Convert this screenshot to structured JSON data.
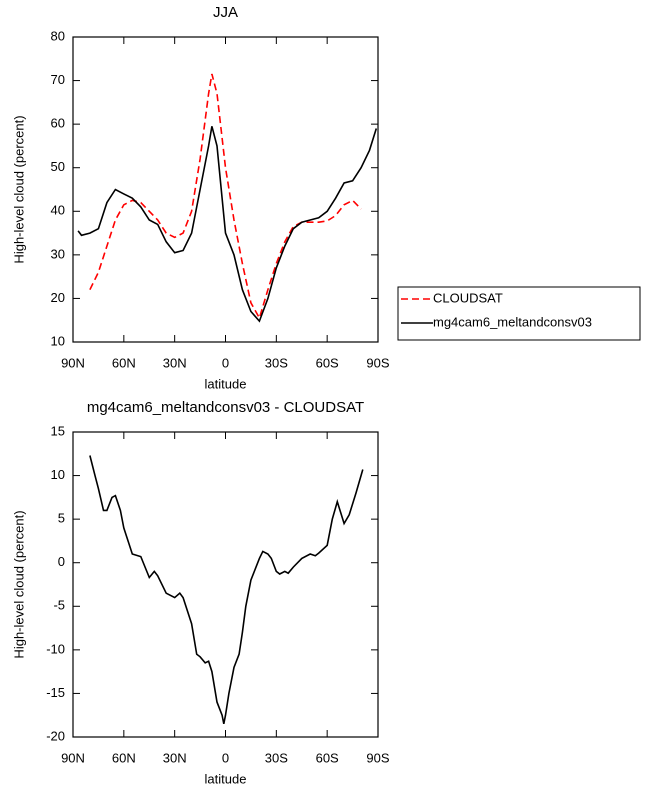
{
  "chart_data": [
    {
      "type": "line",
      "title": "JJA",
      "xlabel": "latitude",
      "ylabel": "High-level cloud (percent)",
      "x": [
        87,
        85,
        80,
        75,
        70,
        65,
        60,
        55,
        50,
        45,
        40,
        35,
        30,
        25,
        20,
        15,
        10,
        8,
        5,
        0,
        -5,
        -10,
        -15,
        -20,
        -25,
        -30,
        -35,
        -40,
        -45,
        -50,
        -55,
        -60,
        -65,
        -70,
        -75,
        -80,
        -85,
        -89
      ],
      "series": [
        {
          "name": "CLOUDSAT",
          "color": "#ff0000",
          "dashed": true,
          "values": [
            null,
            null,
            22,
            26,
            32,
            38,
            41.5,
            42.5,
            42,
            40,
            38,
            35,
            34,
            35,
            40,
            52,
            67,
            71.5,
            67,
            50,
            38,
            28,
            19,
            15.5,
            22,
            28,
            33,
            36.5,
            37.5,
            37.5,
            37.5,
            37.8,
            39,
            41.5,
            42.5,
            40.5,
            null,
            null
          ]
        },
        {
          "name": "mg4cam6_meltandconsv03",
          "color": "#000000",
          "dashed": false,
          "values": [
            35.5,
            34.5,
            35,
            36,
            42,
            45,
            44,
            43,
            41,
            38,
            37,
            33,
            30.5,
            31,
            35,
            45,
            55,
            59.5,
            55,
            35,
            30,
            22,
            17,
            14.8,
            20,
            27,
            32,
            36,
            37.5,
            38,
            38.5,
            40,
            43,
            46.5,
            47,
            50,
            54,
            59
          ]
        }
      ],
      "xlim": [
        90,
        -90
      ],
      "ylim": [
        10,
        80
      ],
      "xticks": [
        {
          "value": 90,
          "label": "90N"
        },
        {
          "value": 60,
          "label": "60N"
        },
        {
          "value": 30,
          "label": "30N"
        },
        0,
        {
          "value": -30,
          "label": "30S"
        },
        {
          "value": -60,
          "label": "60S"
        },
        {
          "value": -90,
          "label": "90S"
        }
      ],
      "yticks": [
        10,
        20,
        30,
        40,
        50,
        60,
        70,
        80
      ],
      "legend": "right"
    },
    {
      "type": "line",
      "title": "mg4cam6_meltandconsv03 - CLOUDSAT",
      "xlabel": "latitude",
      "ylabel": "High-level cloud (percent)",
      "x": [
        80,
        77,
        75,
        72,
        70,
        67,
        65,
        62,
        60,
        55,
        50,
        45,
        42,
        40,
        35,
        30,
        27,
        25,
        20,
        17,
        15,
        12,
        10,
        8,
        5,
        2,
        1,
        0,
        -2,
        -5,
        -8,
        -10,
        -12,
        -15,
        -20,
        -22,
        -25,
        -27,
        -30,
        -32,
        -35,
        -37,
        -40,
        -45,
        -50,
        -53,
        -55,
        -60,
        -63,
        -66,
        -70,
        -73,
        -77,
        -81
      ],
      "series": [
        {
          "color": "#000000",
          "dashed": false,
          "values": [
            12.3,
            10,
            8.5,
            6,
            6,
            7.5,
            7.7,
            6,
            4,
            1,
            0.7,
            -1.7,
            -1,
            -1.5,
            -3.5,
            -4,
            -3.5,
            -4,
            -7,
            -10.5,
            -10.8,
            -11.5,
            -11.3,
            -12.5,
            -16,
            -17.5,
            -18.5,
            -17.5,
            -15,
            -12,
            -10.5,
            -8,
            -5,
            -2,
            0.5,
            1.3,
            1,
            0.5,
            -1,
            -1.3,
            -1,
            -1.2,
            -0.5,
            0.5,
            1,
            0.8,
            1.1,
            2,
            5,
            7,
            4.5,
            5.5,
            8,
            10.7
          ]
        }
      ],
      "xlim": [
        90,
        -90
      ],
      "ylim": [
        -20,
        15
      ],
      "xticks": [
        {
          "value": 90,
          "label": "90N"
        },
        {
          "value": 60,
          "label": "60N"
        },
        {
          "value": 30,
          "label": "30N"
        },
        0,
        {
          "value": -30,
          "label": "30S"
        },
        {
          "value": -60,
          "label": "60S"
        },
        {
          "value": -90,
          "label": "90S"
        }
      ],
      "yticks": [
        -20,
        -15,
        -10,
        -5,
        0,
        5,
        10,
        15
      ]
    }
  ]
}
